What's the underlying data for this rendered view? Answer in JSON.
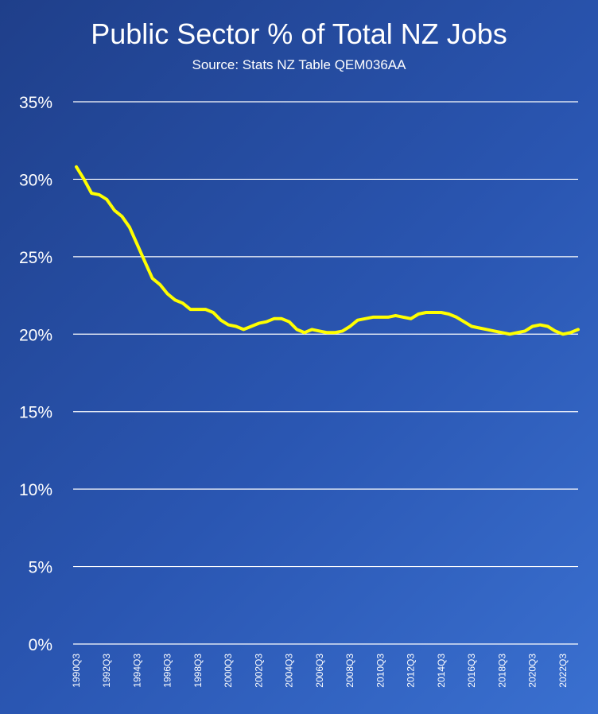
{
  "chart_data": {
    "type": "line",
    "title": "Public Sector % of Total NZ Jobs",
    "subtitle": "Source: Stats NZ Table QEM036AA",
    "xlabel": "",
    "ylabel": "",
    "ylim": [
      0,
      35
    ],
    "y_ticks": [
      0,
      5,
      10,
      15,
      20,
      25,
      30,
      35
    ],
    "y_tick_format": "%",
    "grid": "horizontal",
    "legend": "none",
    "line_color": "#ffff00",
    "x_tick_labels": [
      "1990Q3",
      "1992Q3",
      "1994Q3",
      "1996Q3",
      "1998Q3",
      "2000Q3",
      "2002Q3",
      "2004Q3",
      "2006Q3",
      "2008Q3",
      "2010Q3",
      "2012Q3",
      "2014Q3",
      "2016Q3",
      "2018Q3",
      "2020Q3",
      "2022Q3"
    ],
    "series": [
      {
        "x": [
          "1990Q3",
          "1991Q1",
          "1991Q3",
          "1992Q1",
          "1992Q3",
          "1993Q1",
          "1993Q3",
          "1994Q1",
          "1994Q3",
          "1995Q1",
          "1995Q3",
          "1996Q1",
          "1996Q3",
          "1997Q1",
          "1997Q3",
          "1998Q1",
          "1998Q3",
          "1999Q1",
          "1999Q3",
          "2000Q1",
          "2000Q3",
          "2001Q1",
          "2001Q3",
          "2002Q1",
          "2002Q3",
          "2003Q1",
          "2003Q3",
          "2004Q1",
          "2004Q3",
          "2005Q1",
          "2005Q3",
          "2006Q1",
          "2006Q3",
          "2007Q1",
          "2007Q3",
          "2008Q1",
          "2008Q3",
          "2009Q1",
          "2009Q3",
          "2010Q1",
          "2010Q3",
          "2011Q1",
          "2011Q3",
          "2012Q1",
          "2012Q3",
          "2013Q1",
          "2013Q3",
          "2014Q1",
          "2014Q3",
          "2015Q1",
          "2015Q3",
          "2016Q1",
          "2016Q3",
          "2017Q1",
          "2017Q3",
          "2018Q1",
          "2018Q3",
          "2019Q1",
          "2019Q3",
          "2020Q1",
          "2020Q3",
          "2021Q1",
          "2021Q3",
          "2022Q1",
          "2022Q3",
          "2023Q1",
          "2023Q3"
        ],
        "values": [
          30.8,
          30.0,
          29.1,
          29.0,
          28.7,
          28.0,
          27.6,
          26.9,
          25.8,
          24.7,
          23.6,
          23.2,
          22.6,
          22.2,
          22.0,
          21.6,
          21.6,
          21.6,
          21.4,
          20.9,
          20.6,
          20.5,
          20.3,
          20.5,
          20.7,
          20.8,
          21.0,
          21.0,
          20.8,
          20.3,
          20.1,
          20.3,
          20.2,
          20.1,
          20.1,
          20.2,
          20.5,
          20.9,
          21.0,
          21.1,
          21.1,
          21.1,
          21.2,
          21.1,
          21.0,
          21.3,
          21.4,
          21.4,
          21.4,
          21.3,
          21.1,
          20.8,
          20.5,
          20.4,
          20.3,
          20.2,
          20.1,
          20.0,
          20.1,
          20.2,
          20.5,
          20.6,
          20.5,
          20.2,
          20.0,
          20.1,
          20.3
        ]
      }
    ]
  }
}
